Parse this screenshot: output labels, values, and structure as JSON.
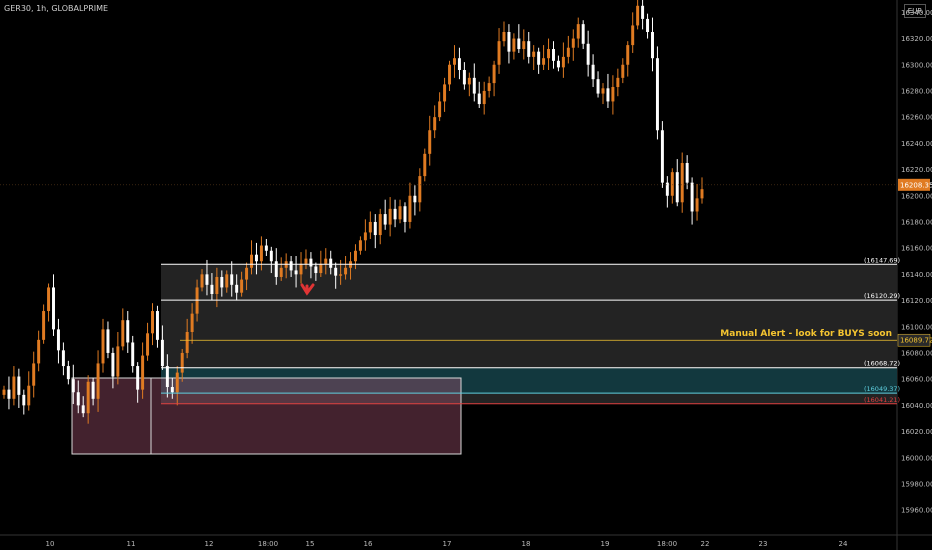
{
  "header": {
    "symbol": "GER30, 1h, GLOBALPRIME",
    "currency": "EUR"
  },
  "colors": {
    "up": "#e07b22",
    "down": "#ffffff",
    "bg": "#000000",
    "price_tag": "#e07b22",
    "alert": "#f4c430"
  },
  "chart_data": {
    "type": "candlestick",
    "y_ticks": [
      15960,
      15980,
      16000,
      16020,
      16040,
      16060,
      16080,
      16100,
      16120,
      16140,
      16160,
      16180,
      16200,
      16220,
      16240,
      16260,
      16280,
      16300,
      16320,
      16340
    ],
    "x_ticks": [
      "10",
      "11",
      "12",
      "18:00",
      "15",
      "16",
      "17",
      "18",
      "19",
      "18:00",
      "22",
      "23",
      "24"
    ],
    "current_price": "16208.35",
    "levels": [
      {
        "value": 16147.69,
        "label": "(16147.69)",
        "color": "#ffffff"
      },
      {
        "value": 16120.29,
        "label": "(16120.29)",
        "color": "#ffffff"
      },
      {
        "value": 16089.72,
        "label": "16089.72",
        "color": "#f4c430"
      },
      {
        "value": 16068.72,
        "label": "(16068.72)",
        "color": "#ffffff"
      },
      {
        "value": 16049.37,
        "label": "(16049.37)",
        "color": "#5fd0e0"
      },
      {
        "value": 16041.21,
        "label": "(16041.21)",
        "color": "#e04040"
      }
    ],
    "annotation": "Manual Alert - look for BUYS soon",
    "closes": [
      16052,
      16045,
      16062,
      16048,
      16040,
      16055,
      16072,
      16090,
      16112,
      16130,
      16098,
      16082,
      16070,
      16060,
      16050,
      16040,
      16034,
      16058,
      16045,
      16072,
      16098,
      16080,
      16062,
      16085,
      16105,
      16088,
      16070,
      16052,
      16078,
      16095,
      16112,
      16090,
      16070,
      16054,
      16050,
      16065,
      16080,
      16096,
      16110,
      16130,
      16140,
      16132,
      16125,
      16138,
      16130,
      16140,
      16132,
      16126,
      16136,
      16145,
      16155,
      16150,
      16162,
      16158,
      16150,
      16138,
      16145,
      16150,
      16143,
      16140,
      16148,
      16152,
      16146,
      16141,
      16148,
      16152,
      16145,
      16139,
      16140,
      16145,
      16150,
      16158,
      16166,
      16172,
      16180,
      16170,
      16186,
      16178,
      16190,
      16182,
      16192,
      16180,
      16200,
      16195,
      16215,
      16232,
      16250,
      16260,
      16272,
      16285,
      16300,
      16305,
      16296,
      16285,
      16290,
      16278,
      16270,
      16280,
      16286,
      16300,
      16318,
      16325,
      16310,
      16320,
      16312,
      16318,
      16306,
      16310,
      16300,
      16305,
      16312,
      16303,
      16298,
      16306,
      16313,
      16320,
      16331,
      16316,
      16300,
      16289,
      16278,
      16282,
      16272,
      16283,
      16290,
      16300,
      16315,
      16330,
      16345,
      16335,
      16325,
      16305,
      16250,
      16210,
      16200,
      16218,
      16195,
      16225,
      16210,
      16188,
      16198,
      16205
    ]
  }
}
